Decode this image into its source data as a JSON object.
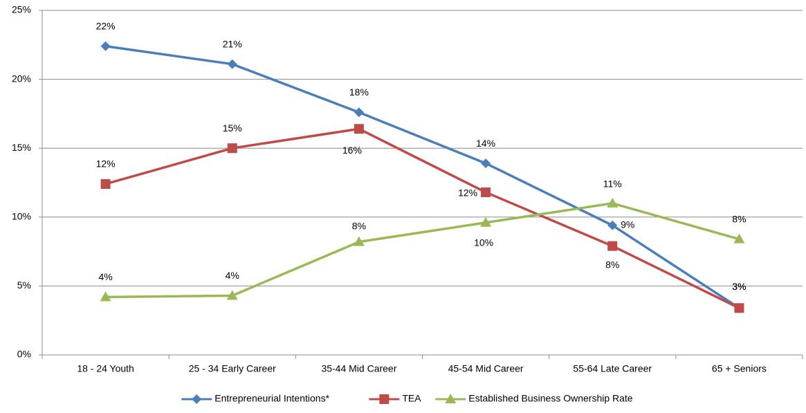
{
  "chart_data": {
    "type": "line",
    "categories": [
      "18 - 24 Youth",
      "25 - 34 Early Career",
      "35-44 Mid Career",
      "45-54 Mid Career",
      "55-64 Late Career",
      "65 + Seniors"
    ],
    "ylim": [
      0,
      25
    ],
    "yticks": [
      {
        "value": 0,
        "label": "0%"
      },
      {
        "value": 5,
        "label": "5%"
      },
      {
        "value": 10,
        "label": "10%"
      },
      {
        "value": 15,
        "label": "15%"
      },
      {
        "value": 20,
        "label": "20%"
      },
      {
        "value": 25,
        "label": "25%"
      }
    ],
    "grid": true,
    "legend": "bottom",
    "series": [
      {
        "name": "Entrepreneurial Intentions*",
        "color": "#4a7ebb",
        "marker": "diamond",
        "values": [
          22.4,
          21.1,
          17.6,
          13.9,
          9.4,
          3.4
        ],
        "value_labels": [
          "22%",
          "21%",
          "18%",
          "14%",
          "9%",
          "3%"
        ]
      },
      {
        "name": "TEA",
        "color": "#be4b48",
        "marker": "square",
        "values": [
          12.4,
          15.0,
          16.4,
          11.8,
          7.9,
          3.4
        ],
        "value_labels": [
          "12%",
          "15%",
          "16%",
          "12%",
          "8%",
          "3%"
        ]
      },
      {
        "name": "Established Business Ownership Rate",
        "color": "#98b954",
        "marker": "triangle",
        "values": [
          4.2,
          4.3,
          8.2,
          9.6,
          11.0,
          8.4
        ],
        "value_labels": [
          "4%",
          "4%",
          "8%",
          "10%",
          "11%",
          "8%"
        ]
      }
    ]
  }
}
